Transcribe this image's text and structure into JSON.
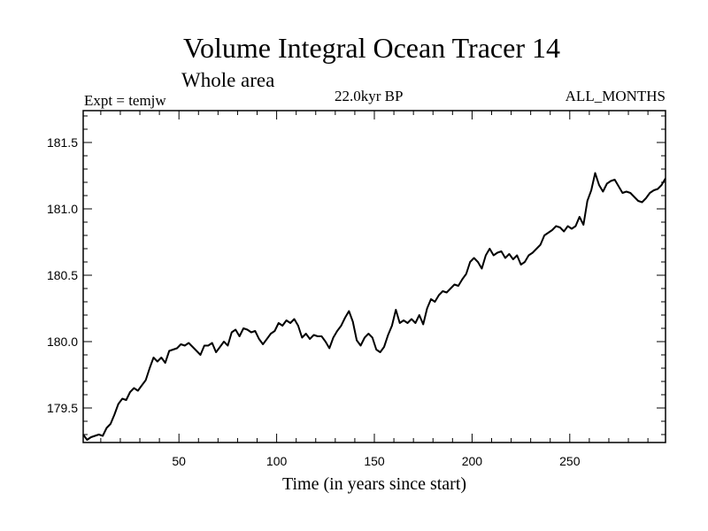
{
  "header": {
    "expt": "Expt = temjw",
    "period": "22.0kyr BP",
    "months": "ALL_MONTHS"
  },
  "chart_data": {
    "type": "line",
    "title": "Volume Integral Ocean Tracer 14",
    "subtitle": "Whole area",
    "xlabel": "Time (in years since start)",
    "ylabel": "",
    "xlim": [
      1,
      299
    ],
    "ylim": [
      179.24,
      181.74
    ],
    "x_ticks": [
      50,
      100,
      150,
      200,
      250
    ],
    "y_ticks": [
      179.5,
      180.0,
      180.5,
      181.0,
      181.5
    ],
    "y_tick_labels": [
      "179.5",
      "180.0",
      "180.5",
      "181.0",
      "181.5"
    ],
    "x_minor_step": 10,
    "y_minor_step": 0.1,
    "grid": false,
    "line_color": "#000000",
    "series": [
      {
        "x": [
          1,
          3,
          5,
          7,
          9,
          11,
          13,
          15,
          17,
          19,
          21,
          23,
          25,
          27,
          29,
          31,
          33,
          35,
          37,
          39,
          41,
          43,
          45,
          47,
          49,
          51,
          53,
          55,
          57,
          59,
          61,
          63,
          65,
          67,
          69,
          71,
          73,
          75,
          77,
          79,
          81,
          83,
          85,
          87,
          89,
          91,
          93,
          95,
          97,
          99,
          101,
          103,
          105,
          107,
          109,
          111,
          113,
          115,
          117,
          119,
          121,
          123,
          125,
          127,
          129,
          131,
          133,
          135,
          137,
          139,
          141,
          143,
          145,
          147,
          149,
          151,
          153,
          155,
          157,
          159,
          161,
          163,
          165,
          167,
          169,
          171,
          173,
          175,
          177,
          179,
          181,
          183,
          185,
          187,
          189,
          191,
          193,
          195,
          197,
          199,
          201,
          203,
          205,
          207,
          209,
          211,
          213,
          215,
          217,
          219,
          221,
          223,
          225,
          227,
          229,
          231,
          233,
          235,
          237,
          239,
          241,
          243,
          245,
          247,
          249,
          251,
          253,
          255,
          257,
          259,
          261,
          263,
          265,
          267,
          269,
          271,
          273,
          275,
          277,
          279,
          281,
          283,
          285,
          287,
          289,
          291,
          293,
          295,
          297,
          299
        ],
        "values": [
          179.3,
          179.26,
          179.28,
          179.29,
          179.3,
          179.29,
          179.35,
          179.38,
          179.45,
          179.53,
          179.57,
          179.56,
          179.62,
          179.65,
          179.63,
          179.67,
          179.71,
          179.8,
          179.88,
          179.85,
          179.88,
          179.84,
          179.93,
          179.94,
          179.95,
          179.98,
          179.97,
          179.99,
          179.96,
          179.93,
          179.9,
          179.97,
          179.97,
          179.99,
          179.92,
          179.96,
          180.0,
          179.97,
          180.07,
          180.09,
          180.04,
          180.1,
          180.09,
          180.07,
          180.08,
          180.02,
          179.98,
          180.02,
          180.06,
          180.08,
          180.14,
          180.12,
          180.16,
          180.14,
          180.17,
          180.12,
          180.03,
          180.06,
          180.02,
          180.05,
          180.04,
          180.04,
          180.0,
          179.95,
          180.03,
          180.08,
          180.12,
          180.18,
          180.23,
          180.15,
          180.01,
          179.97,
          180.03,
          180.06,
          180.03,
          179.94,
          179.92,
          179.96,
          180.05,
          180.12,
          180.24,
          180.14,
          180.16,
          180.14,
          180.17,
          180.14,
          180.2,
          180.13,
          180.25,
          180.32,
          180.3,
          180.35,
          180.38,
          180.37,
          180.4,
          180.43,
          180.42,
          180.47,
          180.51,
          180.6,
          180.63,
          180.6,
          180.55,
          180.65,
          180.7,
          180.65,
          180.67,
          180.68,
          180.63,
          180.66,
          180.62,
          180.65,
          180.58,
          180.6,
          180.65,
          180.67,
          180.7,
          180.73,
          180.8,
          180.82,
          180.84,
          180.87,
          180.86,
          180.83,
          180.87,
          180.85,
          180.87,
          180.94,
          180.88,
          181.06,
          181.14,
          181.27,
          181.18,
          181.13,
          181.19,
          181.21,
          181.22,
          181.17,
          181.12,
          181.13,
          181.12,
          181.09,
          181.06,
          181.05,
          181.08,
          181.12,
          181.14,
          181.15,
          181.18,
          181.23
        ]
      }
    ]
  }
}
